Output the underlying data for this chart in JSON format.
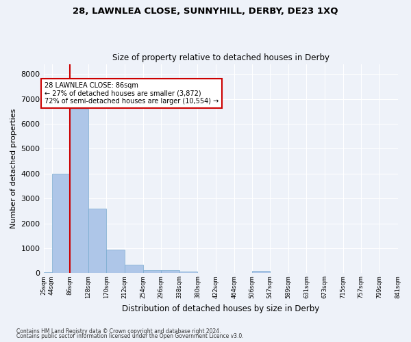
{
  "title_line1": "28, LAWNLEA CLOSE, SUNNYHILL, DERBY, DE23 1XQ",
  "title_line2": "Size of property relative to detached houses in Derby",
  "xlabel": "Distribution of detached houses by size in Derby",
  "ylabel": "Number of detached properties",
  "footnote1": "Contains HM Land Registry data © Crown copyright and database right 2024.",
  "footnote2": "Contains public sector information licensed under the Open Government Licence v3.0.",
  "annotation_line1": "28 LAWNLEA CLOSE: 86sqm",
  "annotation_line2": "← 27% of detached houses are smaller (3,872)",
  "annotation_line3": "72% of semi-detached houses are larger (10,554) →",
  "property_size": 86,
  "bin_edges": [
    25,
    44,
    86,
    128,
    170,
    212,
    254,
    296,
    338,
    380,
    422,
    464,
    506,
    547,
    589,
    631,
    673,
    715,
    757,
    799,
    841
  ],
  "bar_heights": [
    50,
    4000,
    6600,
    2600,
    950,
    330,
    130,
    120,
    60,
    5,
    0,
    0,
    80,
    0,
    0,
    0,
    0,
    0,
    0,
    0
  ],
  "bar_color": "#aec6e8",
  "bar_edge_color": "#7aabcf",
  "vline_color": "#cc0000",
  "annotation_box_color": "#cc0000",
  "background_color": "#eef2f9",
  "grid_color": "#ffffff",
  "ylim": [
    0,
    8400
  ],
  "yticks": [
    0,
    1000,
    2000,
    3000,
    4000,
    5000,
    6000,
    7000,
    8000
  ]
}
